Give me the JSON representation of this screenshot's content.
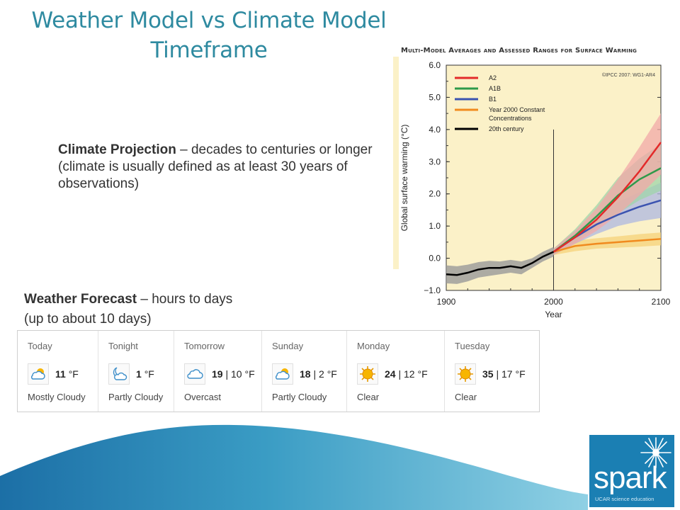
{
  "slide": {
    "title_line1": "Weather Model vs Climate Model",
    "title_line2": "Timeframe",
    "climate_bold": "Climate Projection",
    "climate_rest": " – decades to centuries or longer",
    "climate_paren": "(climate is usually defined as at least 30 years of observations)",
    "weather_bold": "Weather Forecast",
    "weather_rest": " – hours to days",
    "weather_paren": "(up to about 10 days)"
  },
  "forecast": {
    "days": [
      {
        "name": "Today",
        "hi": "11",
        "unit": "°F",
        "lo": "",
        "condition": "Mostly Cloudy",
        "icon": "partly-sunny-cloud-icon"
      },
      {
        "name": "Tonight",
        "hi": "1",
        "unit": "°F",
        "lo": "",
        "condition": "Partly Cloudy",
        "icon": "partly-cloudy-night-icon"
      },
      {
        "name": "Tomorrow",
        "hi": "19",
        "unit": "°F",
        "lo": "10",
        "condition": "Overcast",
        "icon": "cloud-icon"
      },
      {
        "name": "Sunday",
        "hi": "18",
        "unit": "°F",
        "lo": "2",
        "condition": "Partly Cloudy",
        "icon": "partly-sunny-cloud-icon"
      },
      {
        "name": "Monday",
        "hi": "24",
        "unit": "°F",
        "lo": "12",
        "condition": "Clear",
        "icon": "sun-icon"
      },
      {
        "name": "Tuesday",
        "hi": "35",
        "unit": "°F",
        "lo": "17",
        "condition": "Clear",
        "icon": "sun-icon"
      }
    ]
  },
  "logo": {
    "word": "spark",
    "tagline": "UCAR science education"
  },
  "colors": {
    "title": "#2e8aa0",
    "plot_bg": "#fbf1c8",
    "logo_bg": "#1b7fb3"
  },
  "chart_data": {
    "type": "line",
    "title": "Multi-Model Averages and Assessed Ranges for Surface Warming",
    "credit": "©IPCC 2007: WG1-AR4",
    "xlabel": "Year",
    "ylabel": "Global surface warming (°C)",
    "xlim": [
      1900,
      2100
    ],
    "ylim": [
      -1.0,
      6.0
    ],
    "xticks": [
      1900,
      2000,
      2100
    ],
    "yticks": [
      -1.0,
      0.0,
      1.0,
      2.0,
      3.0,
      4.0,
      5.0,
      6.0
    ],
    "vline_x": 2000,
    "legend_position": "top-left",
    "historical": {
      "name": "20th century",
      "color": "#000000",
      "x": [
        1900,
        1910,
        1920,
        1930,
        1940,
        1950,
        1960,
        1970,
        1980,
        1990,
        2000
      ],
      "y": [
        -0.5,
        -0.52,
        -0.45,
        -0.35,
        -0.3,
        -0.3,
        -0.25,
        -0.3,
        -0.15,
        0.05,
        0.2
      ],
      "lower": [
        -0.78,
        -0.8,
        -0.72,
        -0.6,
        -0.55,
        -0.5,
        -0.45,
        -0.5,
        -0.3,
        -0.1,
        0.05
      ],
      "upper": [
        -0.22,
        -0.25,
        -0.2,
        -0.12,
        -0.08,
        -0.1,
        -0.05,
        -0.1,
        0.0,
        0.2,
        0.35
      ]
    },
    "series": [
      {
        "name": "A2",
        "color": "#e32a2a",
        "band": "#f2a8a8",
        "x": [
          2000,
          2020,
          2040,
          2060,
          2080,
          2100
        ],
        "y": [
          0.2,
          0.65,
          1.2,
          1.9,
          2.7,
          3.6
        ],
        "lower": [
          0.1,
          0.45,
          0.85,
          1.35,
          1.95,
          2.6
        ],
        "upper": [
          0.3,
          0.85,
          1.55,
          2.45,
          3.45,
          4.5
        ]
      },
      {
        "name": "A1B",
        "color": "#2e9a4a",
        "band": "#9fd4aa",
        "x": [
          2000,
          2020,
          2040,
          2060,
          2080,
          2100
        ],
        "y": [
          0.2,
          0.7,
          1.3,
          1.95,
          2.45,
          2.8
        ],
        "lower": [
          0.1,
          0.5,
          0.95,
          1.4,
          1.8,
          2.1
        ],
        "upper": [
          0.3,
          0.9,
          1.65,
          2.5,
          3.1,
          3.55
        ]
      },
      {
        "name": "B1",
        "color": "#3b53b0",
        "band": "#aeb7e2",
        "x": [
          2000,
          2020,
          2040,
          2060,
          2080,
          2100
        ],
        "y": [
          0.2,
          0.65,
          1.05,
          1.35,
          1.6,
          1.8
        ],
        "lower": [
          0.1,
          0.45,
          0.75,
          1.0,
          1.15,
          1.25
        ],
        "upper": [
          0.3,
          0.85,
          1.35,
          1.75,
          2.05,
          2.35
        ]
      },
      {
        "name": "Year 2000 Constant Concentrations",
        "color": "#f08a1e",
        "band": "#f5d27a",
        "x": [
          2000,
          2020,
          2040,
          2060,
          2080,
          2100
        ],
        "y": [
          0.2,
          0.38,
          0.45,
          0.5,
          0.55,
          0.6
        ],
        "lower": [
          0.1,
          0.22,
          0.3,
          0.33,
          0.36,
          0.4
        ],
        "upper": [
          0.3,
          0.55,
          0.62,
          0.68,
          0.75,
          0.8
        ]
      }
    ],
    "legend": [
      {
        "label": "A2",
        "color": "#e32a2a"
      },
      {
        "label": "A1B",
        "color": "#2e9a4a"
      },
      {
        "label": "B1",
        "color": "#3b53b0"
      },
      {
        "label": "Year 2000 Constant",
        "label2": "Concentrations",
        "color": "#f08a1e"
      },
      {
        "label": "20th century",
        "color": "#000000"
      }
    ]
  }
}
